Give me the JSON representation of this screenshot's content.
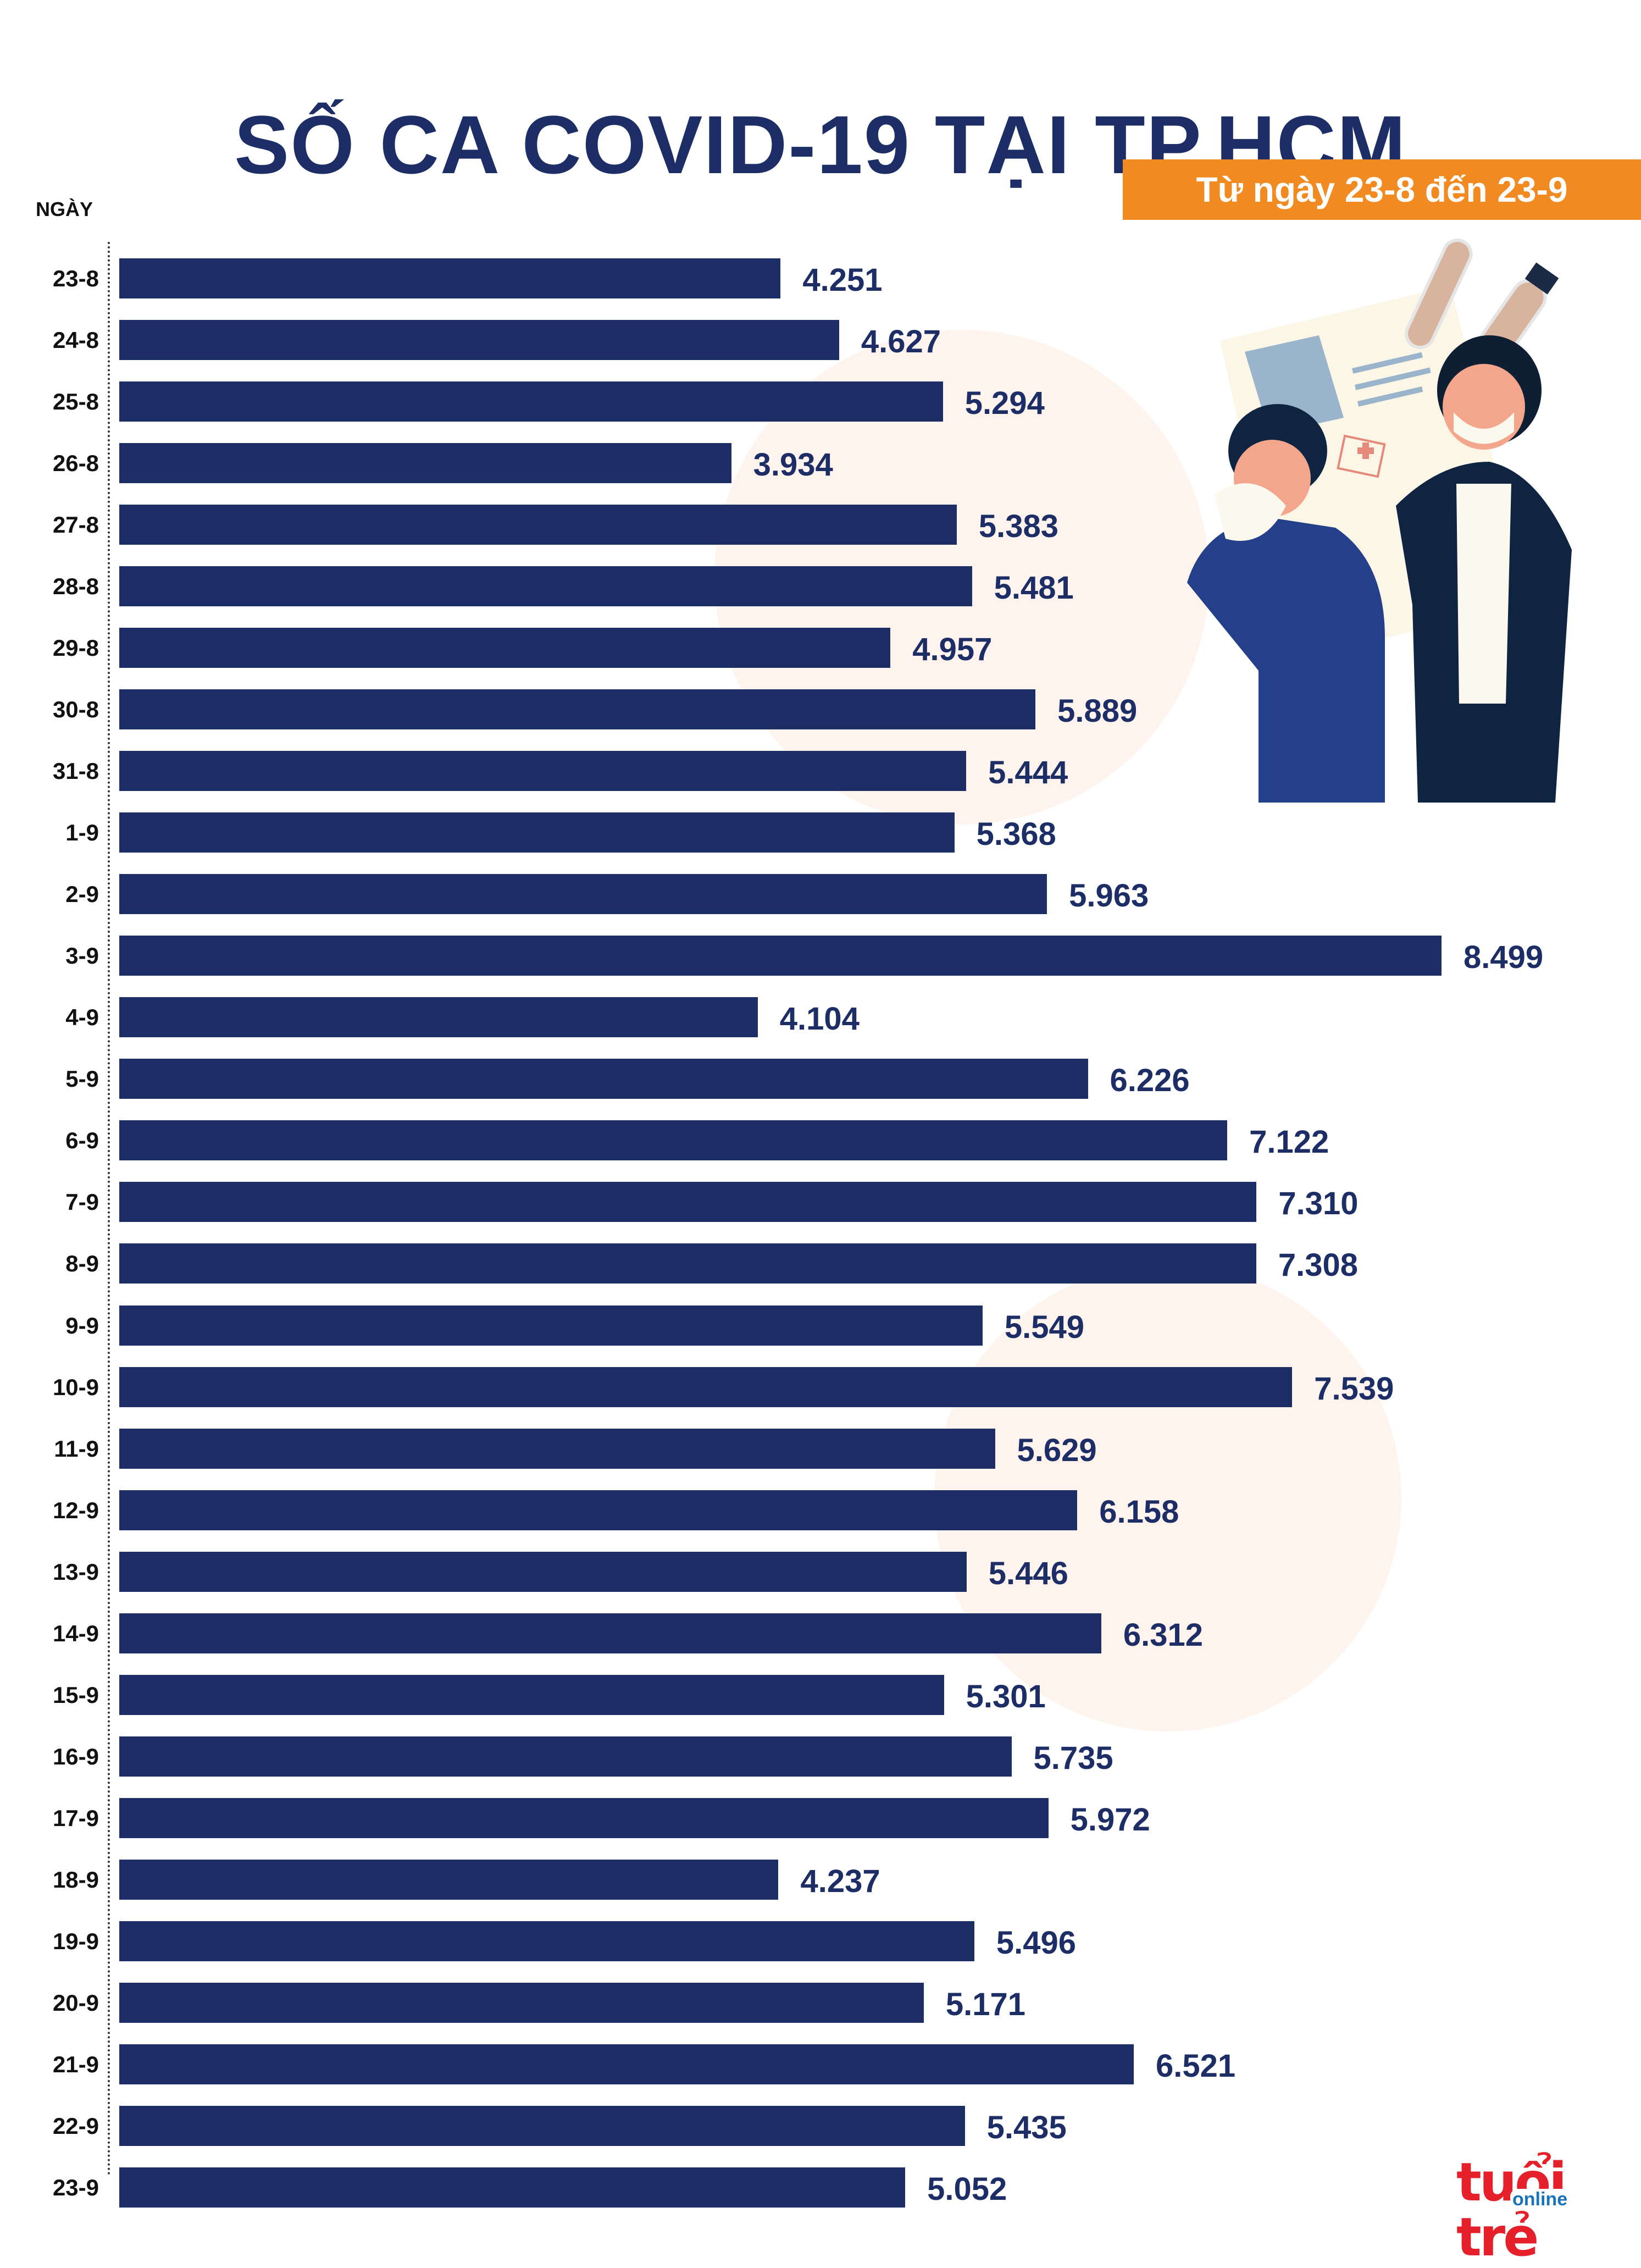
{
  "header": {
    "title": "SỐ CA COVID-19 TẠI TP.HCM",
    "date_range": "Từ ngày 23-8 đến 23-9"
  },
  "axis": {
    "y_label": "NGÀY"
  },
  "colors": {
    "bar": "#1d2d66",
    "accent_orange": "#f28a22",
    "logo_red": "#e5202a",
    "logo_blue": "#1a73b8"
  },
  "logo": {
    "main": "tuổi trẻ",
    "sub": "online"
  },
  "chart_data": {
    "type": "bar",
    "orientation": "horizontal",
    "title": "SỐ CA COVID-19 TẠI TP.HCM",
    "subtitle": "Từ ngày 23-8 đến 23-9",
    "xlabel": "",
    "ylabel": "NGÀY",
    "grid": false,
    "legend": null,
    "categories": [
      "23-8",
      "24-8",
      "25-8",
      "26-8",
      "27-8",
      "28-8",
      "29-8",
      "30-8",
      "31-8",
      "1-9",
      "2-9",
      "3-9",
      "4-9",
      "5-9",
      "6-9",
      "7-9",
      "8-9",
      "9-9",
      "10-9",
      "11-9",
      "12-9",
      "13-9",
      "14-9",
      "15-9",
      "16-9",
      "17-9",
      "18-9",
      "19-9",
      "20-9",
      "21-9",
      "22-9",
      "23-9"
    ],
    "values": [
      4251,
      4627,
      5294,
      3934,
      5383,
      5481,
      4957,
      5889,
      5444,
      5368,
      5963,
      8499,
      4104,
      6226,
      7122,
      7310,
      7308,
      5549,
      7539,
      5629,
      6158,
      5446,
      6312,
      5301,
      5735,
      5972,
      4237,
      5496,
      5171,
      6521,
      5435,
      5052
    ],
    "value_labels": [
      "4.251",
      "4.627",
      "5.294",
      "3.934",
      "5.383",
      "5.481",
      "4.957",
      "5.889",
      "5.444",
      "5.368",
      "5.963",
      "8.499",
      "4.104",
      "6.226",
      "7.122",
      "7.310",
      "7.308",
      "5.549",
      "7.539",
      "5.629",
      "6.158",
      "5.446",
      "6.312",
      "5.301",
      "5.735",
      "5.972",
      "4.237",
      "5.496",
      "5.171",
      "6.521",
      "5.435",
      "5.052"
    ]
  }
}
